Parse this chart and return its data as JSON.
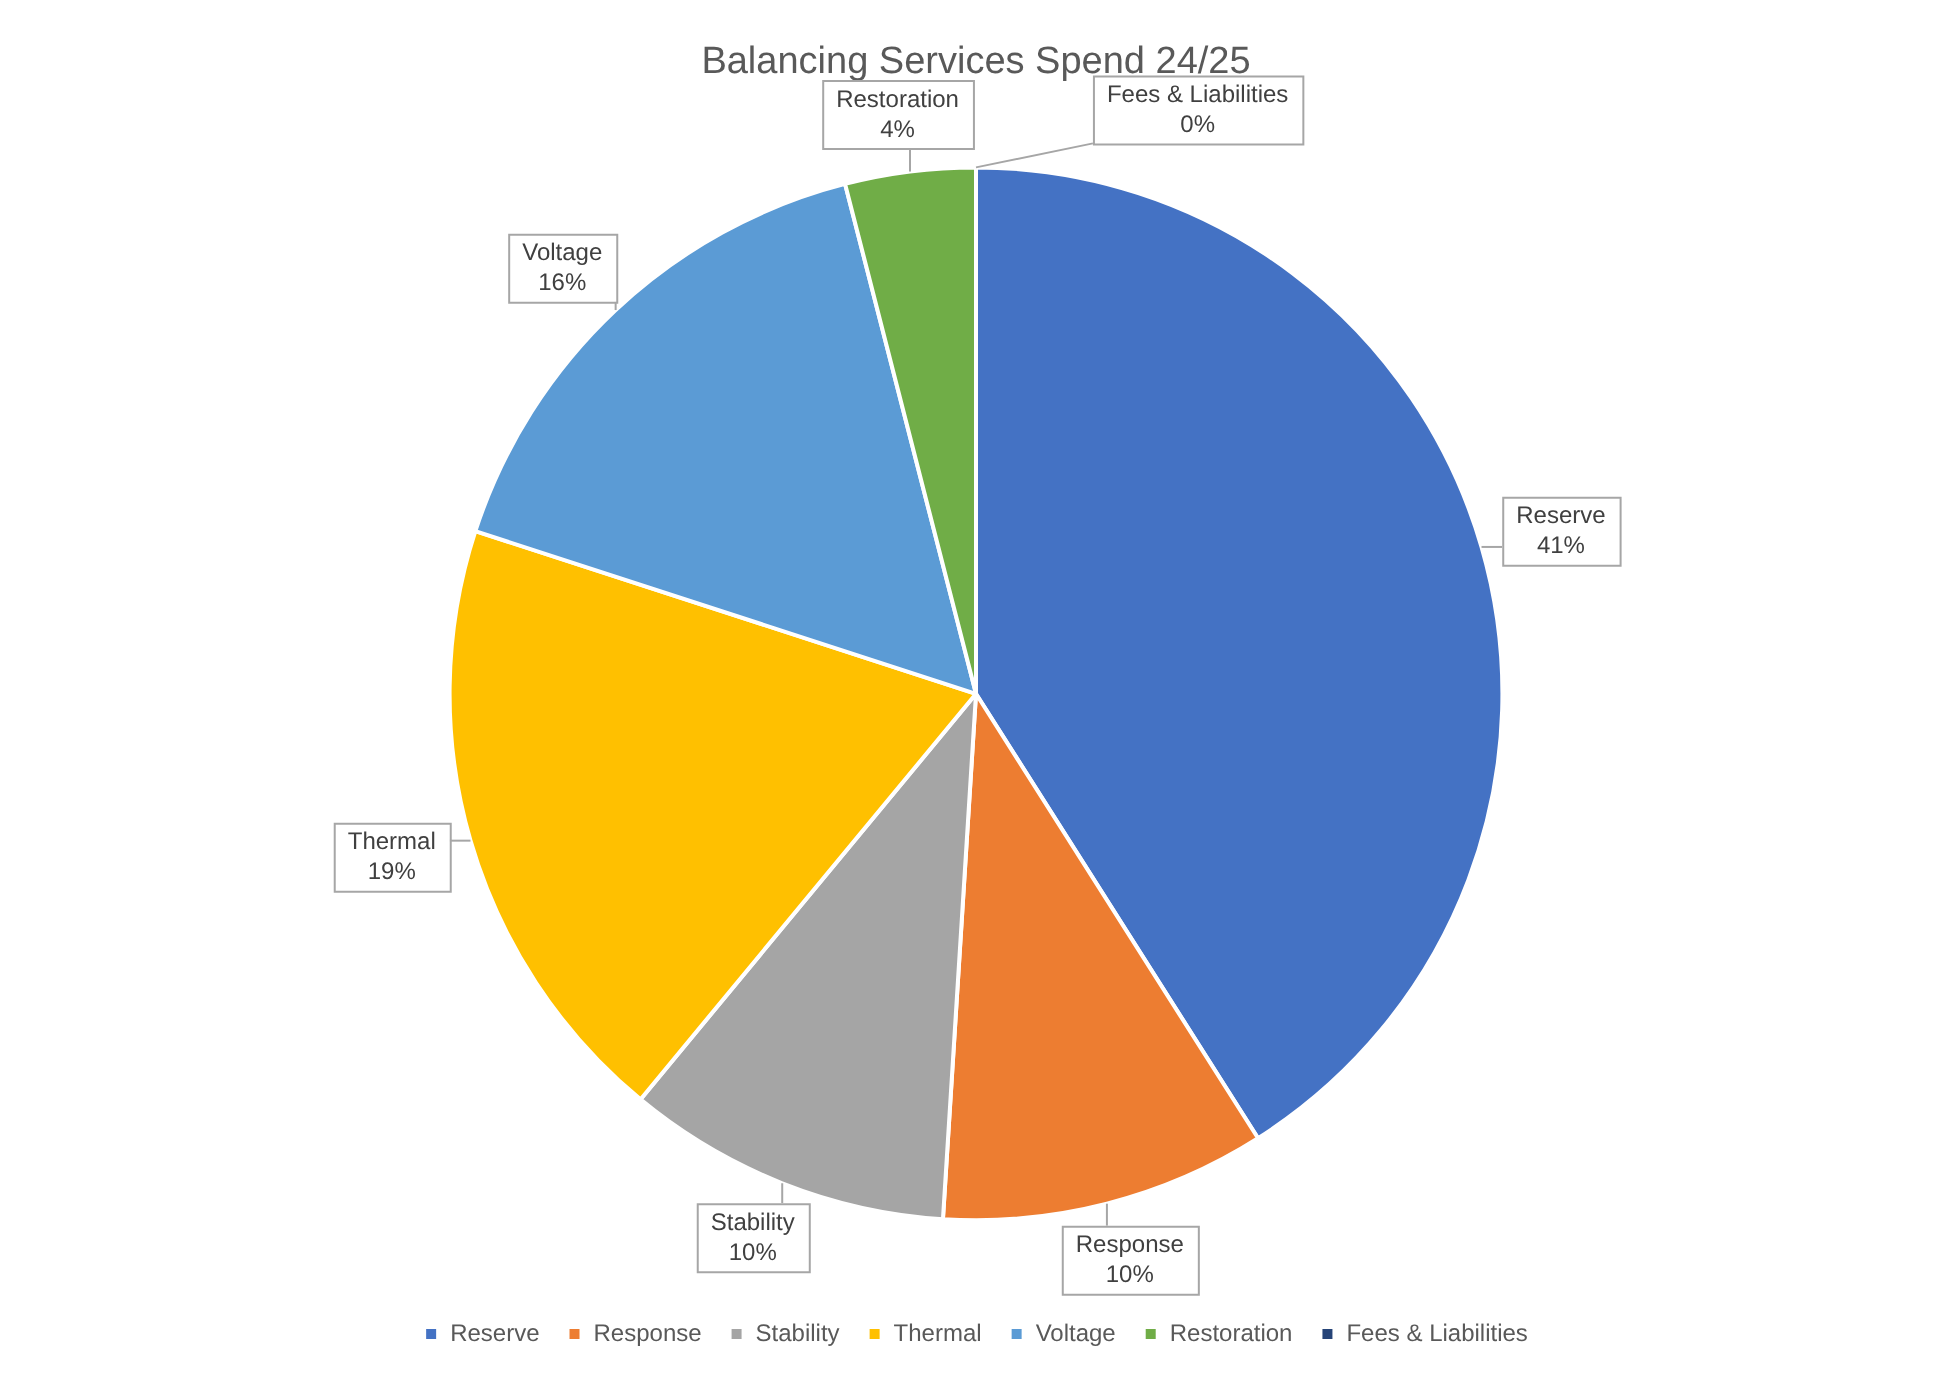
{
  "chart_data": {
    "type": "pie",
    "title": "Balancing Services Spend 24/25",
    "categories": [
      "Reserve",
      "Response",
      "Stability",
      "Thermal",
      "Voltage",
      "Restoration",
      "Fees & Liabilities"
    ],
    "values": [
      41,
      10,
      10,
      19,
      16,
      4,
      0
    ],
    "value_labels": [
      "41%",
      "10%",
      "10%",
      "19%",
      "16%",
      "4%",
      "0%"
    ],
    "colors": [
      "#4472c4",
      "#ed7d31",
      "#a5a5a5",
      "#ffc000",
      "#5b9bd5",
      "#70ad47",
      "#264478"
    ],
    "legend": "bottom"
  }
}
